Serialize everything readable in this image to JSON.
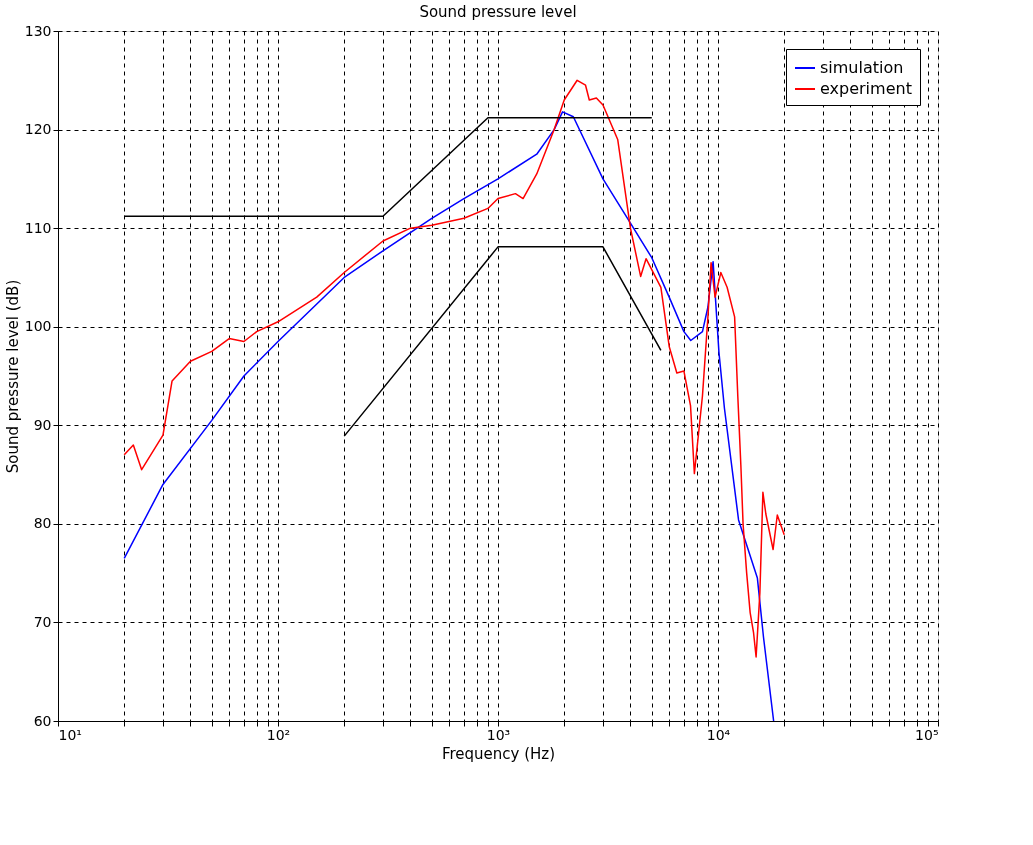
{
  "chart_data": {
    "type": "line",
    "title": "Sound pressure level",
    "xlabel": "Frequency (Hz)",
    "ylabel": "Sound pressure level (dB)",
    "log": "x",
    "grid": true,
    "legend": "top right",
    "line_style": "solid",
    "marker": "none",
    "xlim": [
      10,
      100000
    ],
    "ylim": [
      60,
      130
    ],
    "xticks": [
      {
        "value": 10,
        "label": "10¹"
      },
      {
        "value": 20,
        "label": null
      },
      {
        "value": 30,
        "label": null
      },
      {
        "value": 40,
        "label": null
      },
      {
        "value": 50,
        "label": null
      },
      {
        "value": 60,
        "label": null
      },
      {
        "value": 70,
        "label": null
      },
      {
        "value": 80,
        "label": null
      },
      {
        "value": 90,
        "label": null
      },
      {
        "value": 100,
        "label": "10²"
      },
      {
        "value": 200,
        "label": null
      },
      {
        "value": 300,
        "label": null
      },
      {
        "value": 400,
        "label": null
      },
      {
        "value": 500,
        "label": null
      },
      {
        "value": 600,
        "label": null
      },
      {
        "value": 700,
        "label": null
      },
      {
        "value": 800,
        "label": null
      },
      {
        "value": 900,
        "label": null
      },
      {
        "value": 1000,
        "label": "10³"
      },
      {
        "value": 2000,
        "label": null
      },
      {
        "value": 3000,
        "label": null
      },
      {
        "value": 4000,
        "label": null
      },
      {
        "value": 5000,
        "label": null
      },
      {
        "value": 6000,
        "label": null
      },
      {
        "value": 7000,
        "label": null
      },
      {
        "value": 8000,
        "label": null
      },
      {
        "value": 9000,
        "label": null
      },
      {
        "value": 10000,
        "label": "10⁴"
      },
      {
        "value": 20000,
        "label": null
      },
      {
        "value": 30000,
        "label": null
      },
      {
        "value": 40000,
        "label": null
      },
      {
        "value": 50000,
        "label": null
      },
      {
        "value": 60000,
        "label": null
      },
      {
        "value": 70000,
        "label": null
      },
      {
        "value": 80000,
        "label": null
      },
      {
        "value": 90000,
        "label": null
      },
      {
        "value": 100000,
        "label": "10⁵"
      }
    ],
    "yticks": [
      60,
      70,
      80,
      90,
      100,
      110,
      120,
      130
    ],
    "series": [
      {
        "name": "simulation",
        "color": "#0000ff",
        "x": [
          20,
          30,
          50,
          70,
          100,
          200,
          300,
          500,
          700,
          1000,
          1500,
          1800,
          1965,
          2200,
          3000,
          4000,
          5000,
          6000,
          7000,
          7520,
          8500,
          9000,
          9500,
          10100,
          10700,
          12400,
          15100,
          16100,
          17900
        ],
        "values": [
          76.5,
          84,
          90.5,
          95,
          98.5,
          105,
          107.7,
          111,
          113,
          115,
          117.5,
          120,
          121.8,
          121.3,
          115,
          110.5,
          107,
          103,
          99.5,
          98.6,
          99.5,
          102,
          106.6,
          97.4,
          91.7,
          80.4,
          74.5,
          68.5,
          60
        ]
      },
      {
        "name": "experiment",
        "color": "#ff0000",
        "x": [
          20,
          22,
          24,
          30,
          33,
          40,
          50,
          60,
          70,
          80,
          100,
          150,
          200,
          300,
          400,
          500,
          700,
          900,
          1000,
          1200,
          1300,
          1500,
          1800,
          2000,
          2290,
          2500,
          2600,
          2800,
          3000,
          3500,
          4000,
          4450,
          4710,
          5500,
          6000,
          6500,
          7000,
          7500,
          7810,
          8500,
          9000,
          9300,
          9700,
          10300,
          11000,
          11900,
          12300,
          12700,
          13000,
          13500,
          14000,
          14500,
          14900,
          15500,
          16000,
          16500,
          17800,
          18600,
          20000
        ],
        "values": [
          87,
          88,
          85.5,
          89,
          94.5,
          96.5,
          97.5,
          98.8,
          98.5,
          99.5,
          100.5,
          103,
          105.5,
          108.7,
          110,
          110.3,
          111,
          112,
          113,
          113.5,
          113,
          115.5,
          120,
          123,
          125,
          124.5,
          123,
          123.2,
          122.5,
          119,
          110,
          105.1,
          106.9,
          104,
          98,
          95.3,
          95.5,
          92,
          85.1,
          93,
          101,
          106.5,
          103,
          105.5,
          104,
          101,
          93,
          86,
          80,
          75,
          71,
          69,
          66.5,
          73,
          83.2,
          81,
          77.4,
          80.9,
          78.9
        ]
      },
      {
        "color": "#000000",
        "x": [
          20,
          300,
          900,
          5000
        ],
        "values": [
          111.2,
          111.2,
          121.2,
          121.2
        ]
      },
      {
        "color": "#000000",
        "x": [
          200,
          1000,
          3000,
          5500
        ],
        "values": [
          88.9,
          108.1,
          108.1,
          97.6
        ]
      }
    ]
  }
}
